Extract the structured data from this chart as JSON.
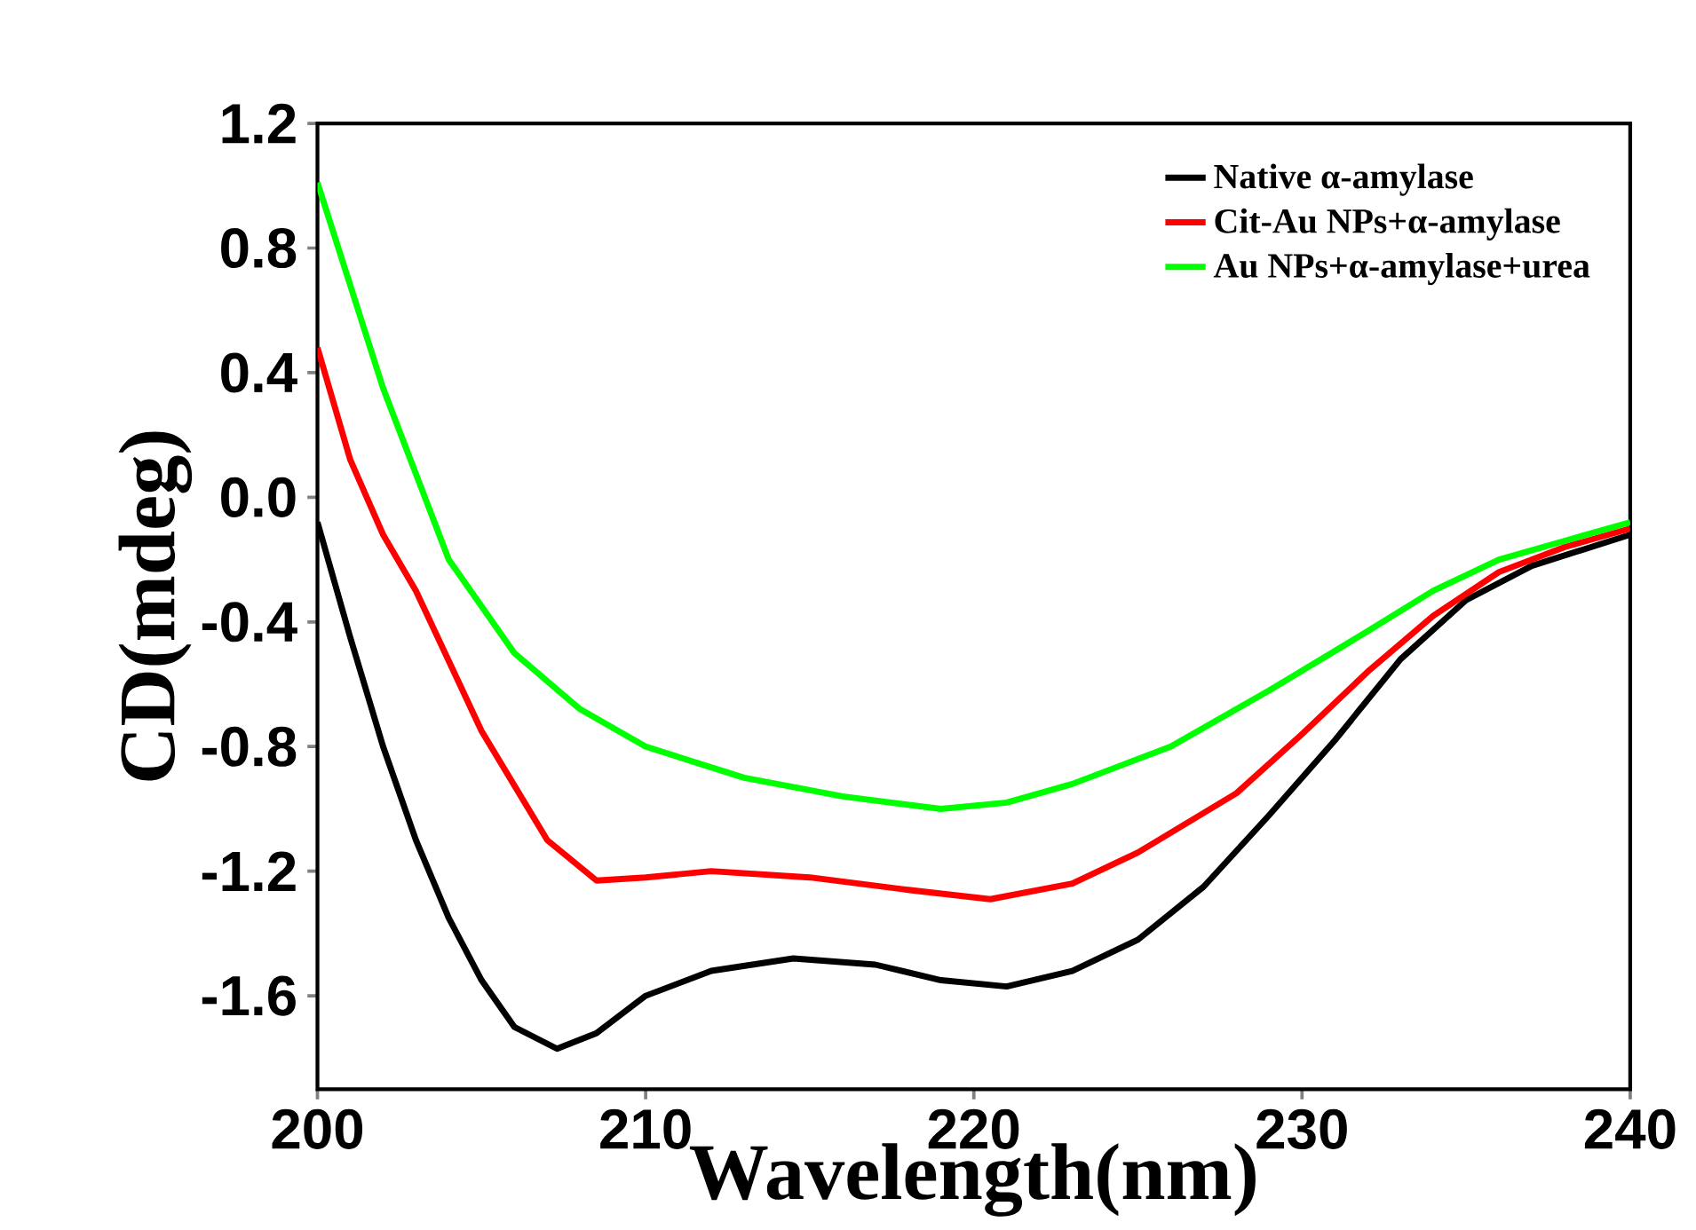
{
  "chart_data": {
    "type": "line",
    "xlabel": "Wavelength(nm)",
    "ylabel": "CD(mdeg)",
    "xlim": [
      200,
      240
    ],
    "ylim": [
      -1.9,
      1.2
    ],
    "xticks": [
      200,
      210,
      220,
      230,
      240
    ],
    "yticks": [
      {
        "value": -1.6,
        "label": "-1.6"
      },
      {
        "value": -1.2,
        "label": "-1.2"
      },
      {
        "value": -0.8,
        "label": "-0.8"
      },
      {
        "value": -0.4,
        "label": "-0.4"
      },
      {
        "value": 0,
        "label": "0.0"
      },
      {
        "value": 0.4,
        "label": "0.4"
      },
      {
        "value": 0.8,
        "label": "0.8"
      },
      {
        "value": 1.2,
        "label": "1.2"
      }
    ],
    "legend": "top right",
    "grid": false,
    "marker": "none",
    "line_style": "solid",
    "series": [
      {
        "name": "Native α-amylase",
        "color": "#000000",
        "x": [
          200,
          201,
          202,
          203,
          204,
          205,
          206,
          207.3,
          208.5,
          210,
          212,
          214.5,
          217,
          219,
          221,
          223,
          225,
          227,
          229,
          231,
          233,
          235,
          237,
          240
        ],
        "values": [
          -0.08,
          -0.45,
          -0.8,
          -1.1,
          -1.35,
          -1.55,
          -1.7,
          -1.77,
          -1.72,
          -1.6,
          -1.52,
          -1.48,
          -1.5,
          -1.55,
          -1.57,
          -1.52,
          -1.42,
          -1.25,
          -1.02,
          -0.78,
          -0.52,
          -0.33,
          -0.22,
          -0.12
        ]
      },
      {
        "name": "Cit-Au NPs+α-amylase",
        "color": "#ff0000",
        "x": [
          200,
          201,
          202,
          203,
          205,
          207,
          208.5,
          210,
          212,
          215,
          218,
          220.5,
          223,
          225,
          228,
          230,
          232,
          234,
          236,
          238,
          240
        ],
        "values": [
          0.48,
          0.12,
          -0.12,
          -0.3,
          -0.75,
          -1.1,
          -1.23,
          -1.22,
          -1.2,
          -1.22,
          -1.26,
          -1.29,
          -1.24,
          -1.14,
          -0.95,
          -0.76,
          -0.56,
          -0.38,
          -0.24,
          -0.16,
          -0.1
        ]
      },
      {
        "name": "Au NPs+α-amylase+urea",
        "color": "#00ff00",
        "x": [
          200,
          202,
          204,
          206,
          208,
          210,
          213,
          216,
          219,
          221,
          223,
          226,
          229,
          232,
          234,
          236,
          238,
          240
        ],
        "values": [
          1.01,
          0.35,
          -0.2,
          -0.5,
          -0.68,
          -0.8,
          -0.9,
          -0.96,
          -1.0,
          -0.98,
          -0.92,
          -0.8,
          -0.62,
          -0.43,
          -0.3,
          -0.2,
          -0.14,
          -0.08
        ]
      }
    ]
  }
}
